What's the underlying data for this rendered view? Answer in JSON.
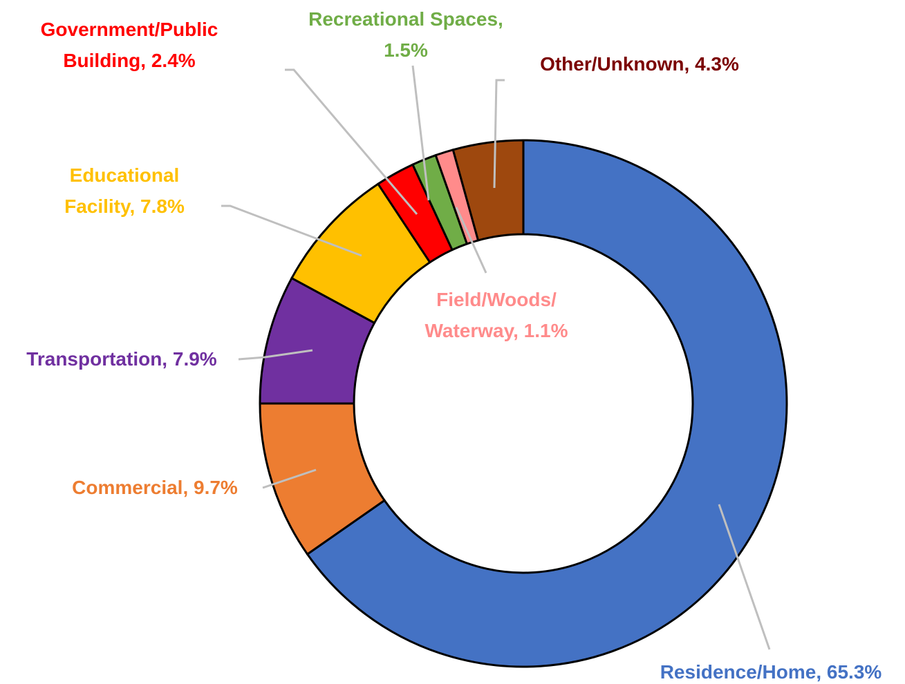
{
  "chart_data": {
    "type": "donut",
    "values": [
      65.3,
      9.7,
      7.9,
      7.8,
      2.4,
      1.5,
      1.1,
      4.3
    ],
    "value_labels": [
      "Residence/Home, 65.3%",
      "Commercial, 9.7%",
      "Transportation, 7.9%",
      "Educational Facility, 7.8%",
      "Government/Public Building, 2.4%",
      "Recreational Spaces, 1.5%",
      "Field/Woods/ Waterway, 1.1%",
      "Other/Unknown, 4.3%"
    ],
    "colors": [
      "#4472c4",
      "#ed7d31",
      "#7030a0",
      "#ffc000",
      "#ff0000",
      "#70ad47",
      "#ff8b8b",
      "#9e480e"
    ],
    "label_colors": [
      "#4472c4",
      "#ed7d31",
      "#7030a0",
      "#ffc000",
      "#ff0000",
      "#70ad47",
      "#ff8b8b",
      "#7b0000"
    ]
  }
}
